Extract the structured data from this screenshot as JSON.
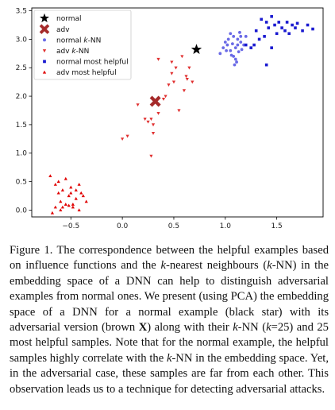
{
  "chart_data": {
    "type": "scatter",
    "xlim": [
      -0.88,
      1.95
    ],
    "ylim": [
      -0.12,
      3.55
    ],
    "x_ticks": [
      -0.5,
      0.0,
      0.5,
      1.0,
      1.5
    ],
    "y_ticks": [
      0.0,
      0.5,
      1.0,
      1.5,
      2.0,
      2.5,
      3.0,
      3.5
    ],
    "x_tick_labels": [
      "−0.5",
      "0.0",
      "0.5",
      "1.0",
      "1.5"
    ],
    "y_tick_labels": [
      "0.0",
      "0.5",
      "1.0",
      "1.5",
      "2.0",
      "2.5",
      "3.0",
      "3.5"
    ],
    "grid": false,
    "legend_position": "top-left",
    "series": [
      {
        "name": "normal",
        "marker": "star",
        "color": "#000000",
        "points": [
          [
            0.72,
            2.82
          ]
        ]
      },
      {
        "name": "adv",
        "marker": "x-thick",
        "color": "#a52a2a",
        "points": [
          [
            0.32,
            1.91
          ]
        ]
      },
      {
        "name": "normal k-NN",
        "marker": "circle",
        "color": "#6a6ae6",
        "points": [
          [
            0.95,
            2.75
          ],
          [
            1.0,
            2.95
          ],
          [
            1.02,
            2.9
          ],
          [
            1.05,
            3.1
          ],
          [
            1.08,
            3.05
          ],
          [
            1.1,
            2.85
          ],
          [
            1.12,
            3.0
          ],
          [
            1.15,
            3.05
          ],
          [
            1.05,
            2.8
          ],
          [
            1.08,
            2.7
          ],
          [
            1.1,
            2.65
          ],
          [
            1.12,
            2.9
          ],
          [
            1.15,
            2.95
          ],
          [
            1.18,
            2.9
          ],
          [
            1.2,
            3.05
          ],
          [
            0.98,
            2.85
          ],
          [
            1.03,
            3.0
          ],
          [
            1.07,
            2.92
          ],
          [
            1.13,
            2.78
          ],
          [
            1.16,
            2.82
          ],
          [
            1.09,
            2.55
          ],
          [
            1.11,
            2.6
          ],
          [
            1.14,
            3.12
          ],
          [
            1.06,
            2.72
          ],
          [
            1.01,
            2.8
          ]
        ]
      },
      {
        "name": "adv k-NN",
        "marker": "triangle-down",
        "color": "#e03030",
        "points": [
          [
            0.15,
            1.85
          ],
          [
            0.22,
            1.6
          ],
          [
            0.25,
            1.55
          ],
          [
            0.28,
            1.6
          ],
          [
            0.35,
            1.7
          ],
          [
            0.3,
            1.5
          ],
          [
            0.4,
            1.95
          ],
          [
            0.42,
            2.0
          ],
          [
            0.45,
            2.2
          ],
          [
            0.5,
            2.25
          ],
          [
            0.48,
            2.4
          ],
          [
            0.52,
            2.5
          ],
          [
            0.55,
            1.75
          ],
          [
            0.6,
            2.1
          ],
          [
            0.62,
            2.35
          ],
          [
            0.63,
            2.3
          ],
          [
            0.65,
            2.5
          ],
          [
            0.68,
            2.25
          ],
          [
            0.48,
            2.6
          ],
          [
            0.58,
            2.7
          ],
          [
            0.35,
            2.65
          ],
          [
            0.3,
            1.35
          ],
          [
            0.05,
            1.3
          ],
          [
            0.0,
            1.25
          ],
          [
            0.28,
            0.95
          ]
        ]
      },
      {
        "name": "normal most helpful",
        "marker": "square",
        "color": "#1a1ad0",
        "points": [
          [
            1.2,
            2.9
          ],
          [
            1.25,
            2.85
          ],
          [
            1.3,
            3.15
          ],
          [
            1.35,
            3.35
          ],
          [
            1.38,
            3.05
          ],
          [
            1.4,
            3.3
          ],
          [
            1.42,
            3.2
          ],
          [
            1.45,
            3.4
          ],
          [
            1.48,
            3.25
          ],
          [
            1.5,
            3.1
          ],
          [
            1.52,
            3.3
          ],
          [
            1.55,
            3.2
          ],
          [
            1.58,
            3.15
          ],
          [
            1.6,
            3.3
          ],
          [
            1.62,
            3.1
          ],
          [
            1.65,
            3.25
          ],
          [
            1.68,
            3.2
          ],
          [
            1.7,
            3.28
          ],
          [
            1.75,
            3.15
          ],
          [
            1.8,
            3.25
          ],
          [
            1.85,
            3.18
          ],
          [
            1.28,
            2.9
          ],
          [
            1.33,
            3.0
          ],
          [
            1.45,
            2.85
          ],
          [
            1.4,
            2.55
          ]
        ]
      },
      {
        "name": "adv most helpful",
        "marker": "triangle-up",
        "color": "#e00000",
        "points": [
          [
            -0.7,
            0.6
          ],
          [
            -0.65,
            0.45
          ],
          [
            -0.62,
            0.3
          ],
          [
            -0.6,
            0.15
          ],
          [
            -0.58,
            0.35
          ],
          [
            -0.55,
            0.55
          ],
          [
            -0.52,
            0.25
          ],
          [
            -0.5,
            0.4
          ],
          [
            -0.48,
            0.05
          ],
          [
            -0.45,
            0.2
          ],
          [
            -0.42,
            0.45
          ],
          [
            -0.4,
            0.3
          ],
          [
            -0.38,
            0.25
          ],
          [
            -0.35,
            0.15
          ],
          [
            -0.6,
            0.0
          ],
          [
            -0.65,
            0.05
          ],
          [
            -0.68,
            -0.05
          ],
          [
            -0.55,
            0.1
          ],
          [
            -0.5,
            0.3
          ],
          [
            -0.45,
            0.35
          ],
          [
            -0.58,
            0.05
          ],
          [
            -0.42,
            0.0
          ],
          [
            -0.48,
            0.1
          ],
          [
            -0.52,
            0.08
          ],
          [
            -0.62,
            0.5
          ]
        ]
      }
    ]
  },
  "legend": [
    {
      "label_pre": "normal",
      "k": "",
      "label_post": ""
    },
    {
      "label_pre": "adv",
      "k": "",
      "label_post": ""
    },
    {
      "label_pre": "normal ",
      "k": "k",
      "label_post": "-NN"
    },
    {
      "label_pre": "adv ",
      "k": "k",
      "label_post": "-NN"
    },
    {
      "label_pre": "normal most helpful",
      "k": "",
      "label_post": ""
    },
    {
      "label_pre": "adv most helpful",
      "k": "",
      "label_post": ""
    }
  ],
  "caption": {
    "s1": "Figure 1. The correspondence between the helpful examples based on influence functions and the ",
    "k1": "k",
    "s2": "-nearest neighbours (",
    "k2": "k",
    "s3": "-NN) in the embedding space of a DNN can help to distinguish adversarial examples from normal ones. We present (using PCA) the embedding space of a DNN for a normal example (black star) with its adversarial version (brown ",
    "x_bold": "X",
    "s4": ") along with their ",
    "k3": "k",
    "s5": "-NN (",
    "k4": "k",
    "s6": "=25) and 25 most helpful samples. Note that for the normal example, the helpful samples highly correlate with the ",
    "k5": "k",
    "s7": "-NN in the embedding space. Yet, in the adversarial case, these samples are far from each other. This observation leads us to a technique for detecting adversarial attacks."
  }
}
